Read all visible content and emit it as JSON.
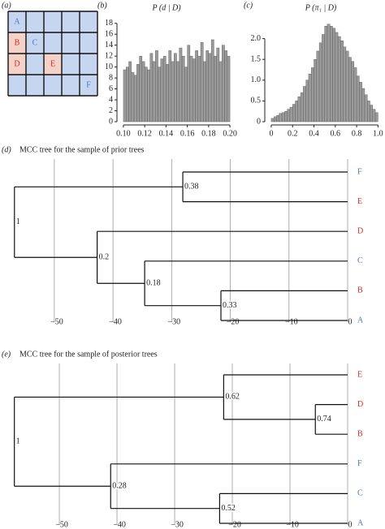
{
  "grid_panel": {
    "panel": "(a)",
    "rows": [
      [
        {
          "text": "A",
          "color": "#4a78c8",
          "fill": null
        },
        null,
        null,
        null,
        null
      ],
      [
        {
          "text": "B",
          "color": "#d42a2a",
          "fill": "#f5d2c8"
        },
        {
          "text": "C",
          "color": "#4a78c8",
          "fill": null
        },
        null,
        null,
        null
      ],
      [
        {
          "text": "D",
          "color": "#d42a2a",
          "fill": "#f5d2c8"
        },
        null,
        {
          "text": "E",
          "color": "#d42a2a",
          "fill": "#f5d2c8"
        },
        null,
        null
      ],
      [
        null,
        null,
        null,
        null,
        {
          "text": "F",
          "color": "#4a78c8",
          "fill": null
        }
      ]
    ]
  },
  "chart_data": [
    {
      "type": "histogram",
      "panel": "(b)",
      "title": "P (d | D)",
      "bins": [
        0.1,
        0.1025,
        0.105,
        0.1075,
        0.11,
        0.1125,
        0.115,
        0.1175,
        0.12,
        0.1225,
        0.125,
        0.1275,
        0.13,
        0.1325,
        0.135,
        0.1375,
        0.14,
        0.1425,
        0.145,
        0.1475,
        0.15,
        0.1525,
        0.155,
        0.1575,
        0.16,
        0.1625,
        0.165,
        0.1675,
        0.17,
        0.1725,
        0.175,
        0.1775,
        0.18,
        0.1825,
        0.185,
        0.1875,
        0.19,
        0.1925,
        0.195,
        0.1975,
        0.2
      ],
      "values": [
        9.5,
        10,
        11,
        9,
        8.5,
        10.5,
        12,
        11,
        10,
        9.5,
        12.5,
        11,
        13,
        10,
        11.5,
        12,
        10.5,
        13,
        11,
        12.5,
        11,
        13.5,
        12,
        10,
        14,
        12,
        11.5,
        13,
        12,
        14.5,
        11,
        13,
        12.5,
        15,
        12,
        13.5,
        11,
        14,
        13,
        12
      ],
      "color": "#9a9a9a",
      "xlim": [
        0.097,
        0.203
      ],
      "xticks": [
        {
          "value": 0.1,
          "label": "0.10"
        },
        0.12,
        0.14,
        0.16,
        0.18,
        {
          "value": 0.2,
          "label": "0.20"
        }
      ],
      "ylim": [
        0,
        19
      ],
      "yticks": [
        0,
        2,
        4,
        6,
        8,
        10,
        12,
        14,
        16,
        18
      ]
    },
    {
      "type": "histogram",
      "panel": "(c)",
      "title": "P (π₁ | D)",
      "bins": [
        0,
        0.025,
        0.05,
        0.075,
        0.1,
        0.125,
        0.15,
        0.175,
        0.2,
        0.225,
        0.25,
        0.275,
        0.3,
        0.325,
        0.35,
        0.375,
        0.4,
        0.425,
        0.45,
        0.475,
        0.5,
        0.525,
        0.55,
        0.575,
        0.6,
        0.625,
        0.65,
        0.675,
        0.7,
        0.725,
        0.75,
        0.775,
        0.8,
        0.825,
        0.85,
        0.875,
        0.9,
        0.925,
        0.95,
        0.975,
        1
      ],
      "values": [
        0.08,
        0.12,
        0.15,
        0.2,
        0.22,
        0.25,
        0.3,
        0.35,
        0.42,
        0.5,
        0.6,
        0.7,
        0.85,
        1.0,
        1.15,
        1.3,
        1.5,
        1.7,
        1.9,
        2.1,
        2.3,
        2.35,
        2.3,
        2.25,
        2.15,
        2.05,
        1.95,
        1.8,
        1.7,
        1.55,
        1.45,
        1.3,
        1.1,
        0.95,
        0.8,
        0.65,
        0.5,
        0.4,
        0.3,
        0.22
      ],
      "color": "#9a9a9a",
      "xlim": [
        -0.03,
        1.02
      ],
      "xticks": [
        0,
        0.2,
        0.4,
        0.6,
        0.8,
        {
          "value": 1,
          "label": "1.0"
        }
      ],
      "ylim": [
        0,
        2.5
      ],
      "yticks": [
        0,
        0.5,
        {
          "value": 1,
          "label": "1.0"
        },
        {
          "value": 1.5,
          "label": "1.5"
        },
        {
          "value": 2,
          "label": "2.0"
        }
      ]
    },
    {
      "type": "tree",
      "panel": "(d)",
      "title": "MCC tree for the sample of prior trees",
      "xlim": [
        -57.6,
        0
      ],
      "xticks": [
        {
          "value": -50,
          "label": "−50"
        },
        {
          "value": -40,
          "label": "−40"
        },
        {
          "value": -30,
          "label": "−30"
        },
        {
          "value": -20,
          "label": "−20"
        },
        {
          "value": -10,
          "label": "−10"
        },
        0
      ],
      "tree": {
        "support": 1,
        "age": -56.8,
        "children": [
          {
            "support": 0.38,
            "age": -28.1,
            "children": [
              {
                "name": "F",
                "color": "#4a78c8",
                "age": 0
              },
              {
                "name": "E",
                "color": "#d42a2a",
                "age": 0
              }
            ]
          },
          {
            "support": 0.2,
            "age": -42.7,
            "children": [
              {
                "name": "D",
                "color": "#d42a2a",
                "age": 0
              },
              {
                "support": 0.18,
                "age": -34.6,
                "children": [
                  {
                    "name": "C",
                    "color": "#4a78c8",
                    "age": 0
                  },
                  {
                    "support": 0.33,
                    "age": -21.6,
                    "children": [
                      {
                        "name": "B",
                        "color": "#d42a2a",
                        "age": 0
                      },
                      {
                        "name": "A",
                        "color": "#4a78c8",
                        "age": 0
                      }
                    ]
                  }
                ]
              }
            ]
          }
        ]
      }
    },
    {
      "type": "tree",
      "panel": "(e)",
      "title": "MCC tree for the sample of posterior trees",
      "xlim": [
        -58.6,
        0
      ],
      "xticks": [
        {
          "value": -50,
          "label": "−50"
        },
        {
          "value": -40,
          "label": "−40"
        },
        {
          "value": -30,
          "label": "−30"
        },
        {
          "value": -20,
          "label": "−20"
        },
        {
          "value": -10,
          "label": "−10"
        },
        0
      ],
      "tree": {
        "support": 1,
        "age": -57.8,
        "children": [
          {
            "support": 0.62,
            "age": -21.5,
            "children": [
              {
                "name": "E",
                "color": "#d42a2a",
                "age": 0
              },
              {
                "support": 0.74,
                "age": -5.6,
                "children": [
                  {
                    "name": "D",
                    "color": "#d42a2a",
                    "age": 0
                  },
                  {
                    "name": "B",
                    "color": "#d42a2a",
                    "age": 0
                  }
                ]
              }
            ]
          },
          {
            "support": 0.28,
            "age": -41.1,
            "children": [
              {
                "name": "F",
                "color": "#4a78c8",
                "age": 0
              },
              {
                "support": 0.52,
                "age": -22.2,
                "children": [
                  {
                    "name": "C",
                    "color": "#4a78c8",
                    "age": 0
                  },
                  {
                    "name": "A",
                    "color": "#4a78c8",
                    "age": 0
                  }
                ]
              }
            ]
          }
        ]
      }
    }
  ]
}
